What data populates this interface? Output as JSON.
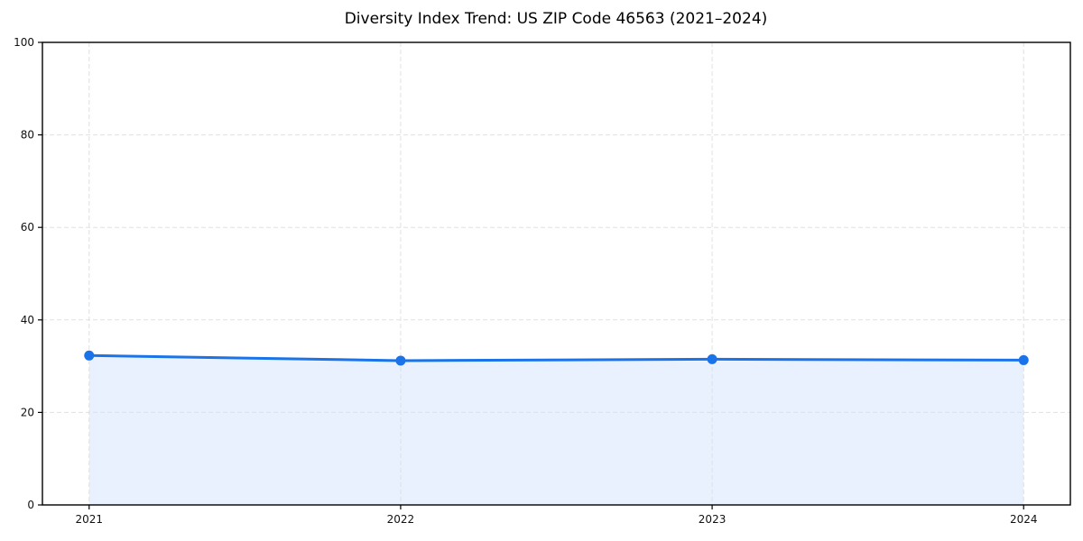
{
  "chart_data": {
    "type": "area",
    "title": "Diversity Index Trend: US ZIP Code 46563 (2021–2024)",
    "x": [
      "2021",
      "2022",
      "2023",
      "2024"
    ],
    "series": [
      {
        "name": "Diversity Index",
        "values": [
          32.3,
          31.2,
          31.5,
          31.3
        ]
      }
    ],
    "xlabel": "",
    "ylabel": "",
    "ylim": [
      0,
      100
    ],
    "yticks": [
      0,
      20,
      40,
      60,
      80,
      100
    ],
    "grid": "dashed",
    "legend": "none",
    "colors": {
      "line": "#1a73e8",
      "marker": "#1a73e8",
      "fill": "#e8f1fd",
      "grid": "#e0e0e0",
      "axis": "#000000",
      "text": "#111111",
      "background": "#ffffff"
    }
  }
}
